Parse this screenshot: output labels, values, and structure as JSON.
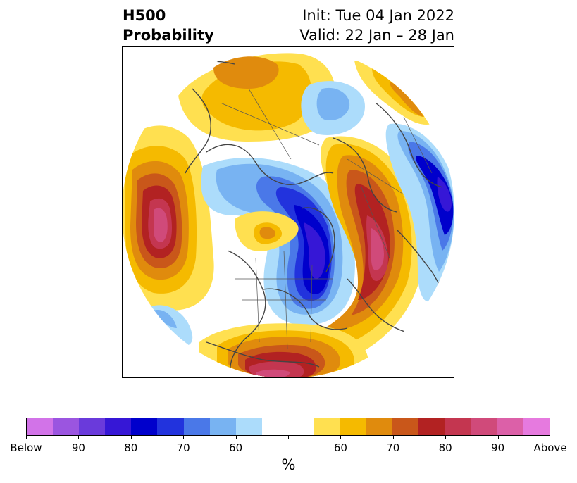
{
  "title": {
    "left_line1": "H500",
    "left_line2": "Probability",
    "right_line1": "Init: Tue 04 Jan 2022",
    "right_line2": "Valid: 22 Jan – 28 Jan"
  },
  "colorbar": {
    "colors": [
      "#d273e8",
      "#9b55e0",
      "#6a3adb",
      "#3617d6",
      "#0000cc",
      "#2233dd",
      "#4a78e8",
      "#78b3f2",
      "#acdcfb",
      "#ffffff",
      "#ffffff",
      "#ffe050",
      "#f5ba00",
      "#e08b0d",
      "#c9571a",
      "#b22222",
      "#c43650",
      "#d04a7a",
      "#dc60a8",
      "#e67adf"
    ],
    "tick_labels": [
      "Below",
      "90",
      "80",
      "70",
      "60",
      "",
      "60",
      "70",
      "80",
      "90",
      "Above"
    ],
    "unit": "%"
  },
  "map": {
    "projection": "north-polar-stereographic",
    "anomaly_palette": {
      "white": "#ffffff",
      "blue_60": "#acdcfb",
      "blue_70": "#78b3f2",
      "blue_75": "#4a78e8",
      "blue_80": "#2233dd",
      "blue_85": "#0000cc",
      "blue_90": "#3617d6",
      "warm_55": "#ffe050",
      "warm_60": "#f5ba00",
      "warm_65": "#e08b0d",
      "warm_70": "#c9571a",
      "warm_75": "#b22222",
      "warm_80": "#c43650",
      "warm_85": "#d04a7a"
    },
    "coastline_color": "#444444"
  }
}
